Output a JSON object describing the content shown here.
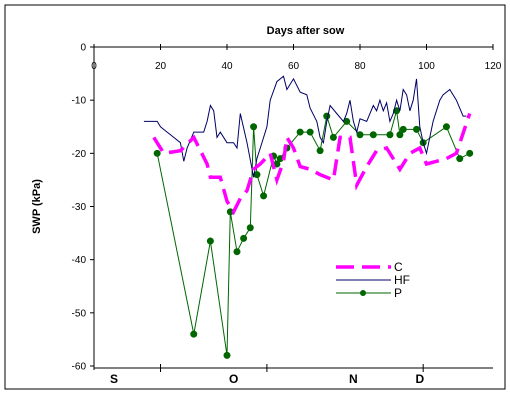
{
  "chart_data": {
    "type": "line",
    "title": "",
    "xlabel": "Days after sow",
    "ylabel": "SWP (kPa)",
    "xlim": [
      0,
      120
    ],
    "ylim": [
      -60,
      0
    ],
    "x_ticks": [
      0,
      20,
      40,
      60,
      80,
      100,
      120
    ],
    "y_ticks": [
      0,
      -10,
      -20,
      -30,
      -40,
      -50,
      -60
    ],
    "x_axis_position": "top",
    "grid": false,
    "legend_position": "bottom-right",
    "month_axis": {
      "labels": [
        {
          "text": "S",
          "x": 6
        },
        {
          "text": "O",
          "x": 42
        },
        {
          "text": "N",
          "x": 78
        },
        {
          "text": "D",
          "x": 98
        }
      ],
      "dividers": [
        20,
        52,
        99
      ]
    },
    "series": [
      {
        "name": "C",
        "color": "#ff00ff",
        "style": "dashed-thick",
        "points": [
          [
            18,
            -17
          ],
          [
            21,
            -20
          ],
          [
            26,
            -19.5
          ],
          [
            30,
            -17
          ],
          [
            34,
            -22
          ],
          [
            35,
            -24.5
          ],
          [
            38,
            -24.5
          ],
          [
            40,
            -29
          ],
          [
            42,
            -31
          ],
          [
            44,
            -28.5
          ],
          [
            46,
            -27
          ],
          [
            48,
            -23
          ],
          [
            50,
            -22
          ],
          [
            53,
            -20
          ],
          [
            55,
            -25
          ],
          [
            57,
            -21.5
          ],
          [
            58,
            -17
          ],
          [
            60,
            -19
          ],
          [
            62,
            -22.5
          ],
          [
            65,
            -23
          ],
          [
            68,
            -24
          ],
          [
            72,
            -25
          ],
          [
            74,
            -17
          ],
          [
            77,
            -17
          ],
          [
            79,
            -26
          ],
          [
            82,
            -22.5
          ],
          [
            85,
            -19.5
          ],
          [
            88,
            -19
          ],
          [
            92,
            -23
          ],
          [
            95,
            -20
          ],
          [
            98,
            -19
          ],
          [
            100,
            -22
          ],
          [
            106,
            -21
          ],
          [
            109,
            -20
          ],
          [
            113,
            -12.5
          ]
        ]
      },
      {
        "name": "HF",
        "color": "#000066",
        "style": "solid-thin",
        "points": [
          [
            15,
            -14
          ],
          [
            19,
            -14
          ],
          [
            20,
            -15
          ],
          [
            22,
            -16
          ],
          [
            24,
            -17
          ],
          [
            26,
            -18
          ],
          [
            27,
            -21.5
          ],
          [
            28,
            -19
          ],
          [
            30,
            -16
          ],
          [
            32,
            -16
          ],
          [
            33,
            -16
          ],
          [
            34,
            -14
          ],
          [
            35,
            -11
          ],
          [
            36,
            -12
          ],
          [
            37,
            -17
          ],
          [
            38,
            -16
          ],
          [
            40,
            -18
          ],
          [
            42,
            -18
          ],
          [
            43,
            -19
          ],
          [
            44,
            -12.5
          ],
          [
            46,
            -18
          ],
          [
            48,
            -24.5
          ],
          [
            49,
            -21
          ],
          [
            50,
            -19
          ],
          [
            52,
            -15
          ],
          [
            53,
            -10
          ],
          [
            55,
            -6.5
          ],
          [
            57,
            -5.5
          ],
          [
            58,
            -8
          ],
          [
            60,
            -6
          ],
          [
            62,
            -8.5
          ],
          [
            64,
            -9
          ],
          [
            65,
            -11.5
          ],
          [
            67,
            -14
          ],
          [
            68,
            -17
          ],
          [
            69,
            -18
          ],
          [
            70,
            -14
          ],
          [
            71,
            -11
          ],
          [
            73,
            -12.5
          ],
          [
            75,
            -14
          ],
          [
            76,
            -12.5
          ],
          [
            77,
            -10
          ],
          [
            78,
            -14
          ],
          [
            79,
            -16
          ],
          [
            80,
            -13.5
          ],
          [
            82,
            -14
          ],
          [
            84,
            -11
          ],
          [
            85,
            -12
          ],
          [
            86,
            -10
          ],
          [
            87,
            -12
          ],
          [
            88,
            -10.5
          ],
          [
            89,
            -14
          ],
          [
            90,
            -12.5
          ],
          [
            91,
            -10
          ],
          [
            92,
            -12
          ],
          [
            93,
            -8
          ],
          [
            94,
            -9
          ],
          [
            95,
            -12
          ],
          [
            96,
            -10
          ],
          [
            97,
            -6
          ],
          [
            98,
            -15
          ],
          [
            99,
            -18
          ],
          [
            100,
            -20
          ],
          [
            102,
            -14
          ],
          [
            104,
            -10
          ],
          [
            105,
            -9
          ],
          [
            107,
            -8
          ],
          [
            109,
            -10
          ],
          [
            111,
            -13
          ],
          [
            112,
            -13
          ]
        ]
      },
      {
        "name": "P",
        "color": "#006600",
        "style": "solid-markers",
        "points": [
          [
            19,
            -20
          ],
          [
            30,
            -54
          ],
          [
            35,
            -36.5
          ],
          [
            40,
            -58
          ],
          [
            41,
            -31
          ],
          [
            43,
            -38.5
          ],
          [
            45,
            -36
          ],
          [
            47,
            -34
          ],
          [
            48,
            -15
          ],
          [
            49,
            -24
          ],
          [
            51,
            -28
          ],
          [
            54,
            -20.5
          ],
          [
            55,
            -22
          ],
          [
            56,
            -21
          ],
          [
            58,
            -19
          ],
          [
            62,
            -16
          ],
          [
            65,
            -16
          ],
          [
            68,
            -19.5
          ],
          [
            70,
            -13
          ],
          [
            72,
            -17
          ],
          [
            76,
            -14
          ],
          [
            80,
            -16.5
          ],
          [
            84,
            -16.5
          ],
          [
            89,
            -16.5
          ],
          [
            91,
            -12
          ],
          [
            92,
            -16.5
          ],
          [
            93,
            -15.5
          ],
          [
            97,
            -15.5
          ],
          [
            99,
            -18
          ],
          [
            106,
            -15
          ],
          [
            110,
            -21
          ],
          [
            113,
            -20
          ]
        ]
      }
    ]
  }
}
